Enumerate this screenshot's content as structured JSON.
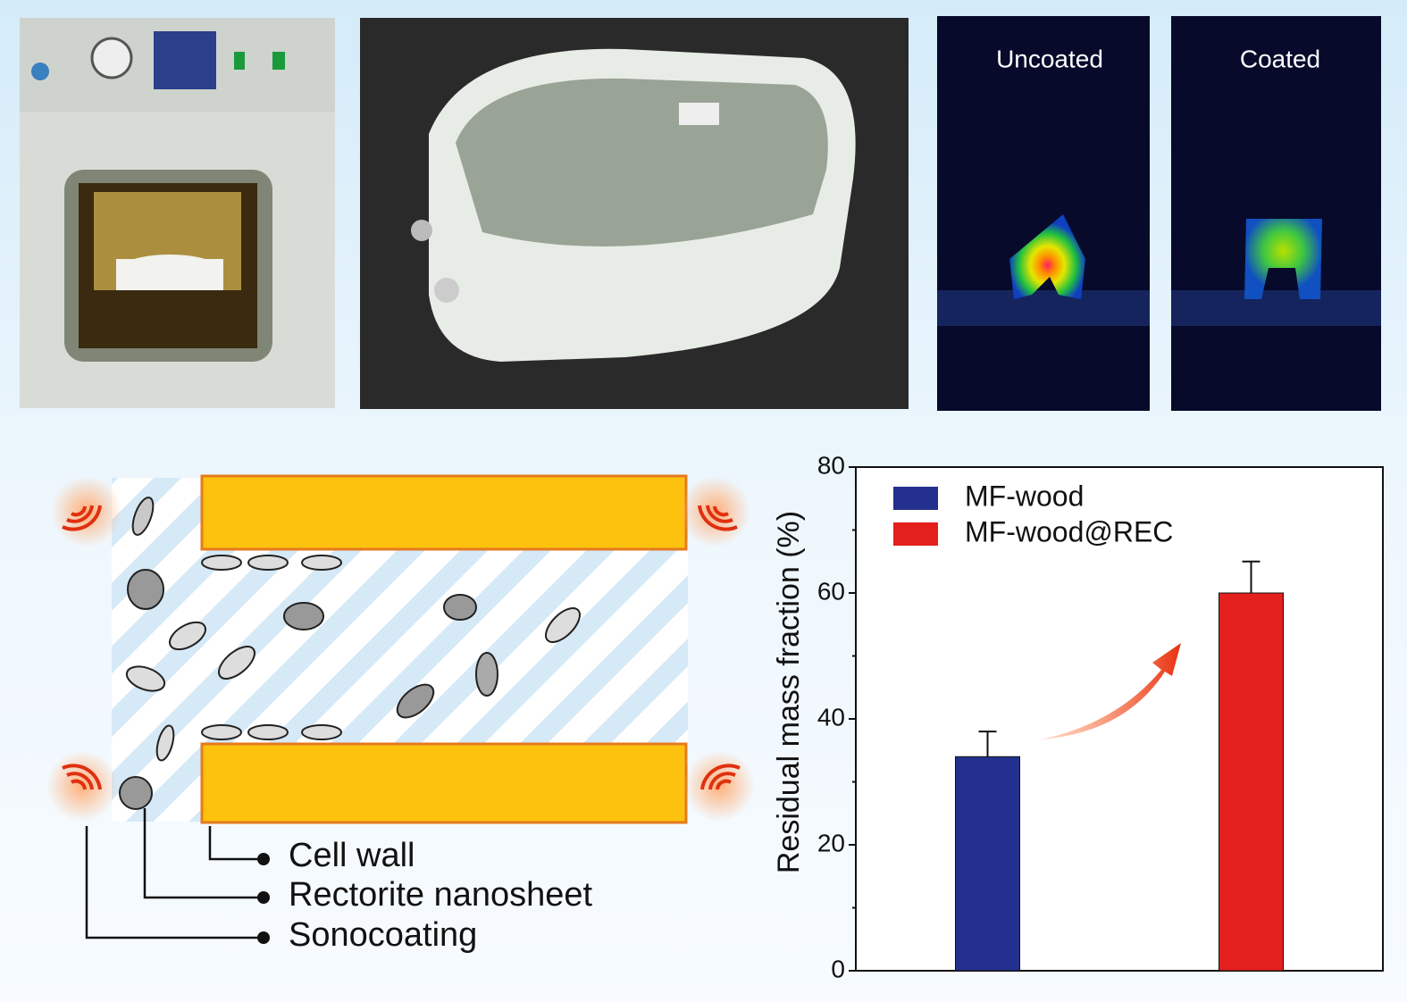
{
  "photos": {
    "thermal_left": "Uncoated",
    "thermal_right": "Coated"
  },
  "diagram": {
    "labels": [
      "Cell wall",
      "Rectorite nanosheet",
      "Sonocoating"
    ]
  },
  "chart_data": {
    "type": "bar",
    "y_label": "Residual mass fraction (%)",
    "categories": [
      null,
      null
    ],
    "series": [
      {
        "name": "MF-wood",
        "color": "#23308e",
        "values": [
          34,
          null
        ],
        "errors": [
          4,
          null
        ]
      },
      {
        "name": "MF-wood@REC",
        "color": "#e3201b",
        "values": [
          null,
          60
        ],
        "errors": [
          null,
          5
        ]
      }
    ],
    "ylim": [
      0,
      80
    ],
    "yticks": [
      0,
      20,
      40,
      60,
      80
    ],
    "legend": "upper left"
  }
}
